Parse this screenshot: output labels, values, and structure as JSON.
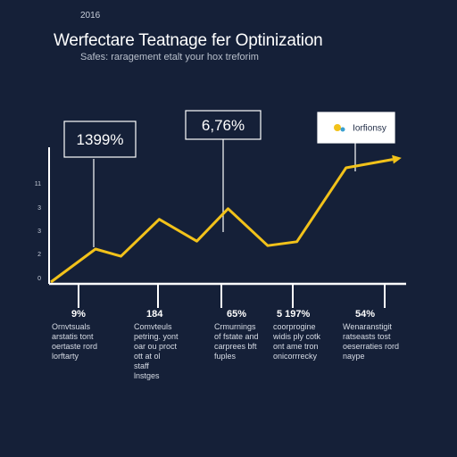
{
  "header": {
    "year": "2016",
    "title": "Werfectare Teatnage fer Optinization",
    "subtitle": "Safes: raragement etalt your hox treforim"
  },
  "callouts": [
    {
      "text": "1399%"
    },
    {
      "text": "6,76%"
    },
    {
      "text": "Iorfionsy",
      "logo": true
    }
  ],
  "bottom_labels": [
    {
      "value": "9%",
      "lines": [
        "Ornvtsuals",
        "arstatis tont",
        "oertaste rord",
        "lorftarty"
      ]
    },
    {
      "value": "184",
      "lines": [
        "Comvteuls",
        "petring.  yont",
        "oar ou proct",
        "ott at ol",
        "staff",
        "lnstges"
      ]
    },
    {
      "value": "65%",
      "lines": [
        "Crmurnings",
        "of  fstate and",
        "carprees bft",
        "fuples"
      ]
    },
    {
      "value": "5 197%",
      "lines": [
        "coorprogine",
        "widis ply cotk",
        "ont ame tron",
        "onicorrrecky"
      ]
    },
    {
      "value": "54%",
      "lines": [
        "Wenaranstigit",
        "ratseasts tost",
        "oeserraties rord",
        "naype"
      ]
    }
  ],
  "chart_data": {
    "type": "line",
    "title": "Werfectare Teatnage fer Optinization",
    "xlabel": "",
    "ylabel": "",
    "y_ticks": [
      "0",
      "2",
      "3",
      "3",
      "11"
    ],
    "ylim": [
      0,
      11
    ],
    "x_ticks": [
      "9%",
      "184",
      "65%",
      "5 197%",
      "54%"
    ],
    "series": [
      {
        "values": [
          0,
          2.95,
          2.3,
          5.6,
          3.65,
          6.55,
          3.25,
          3.6,
          10.2,
          10.95
        ],
        "x": [
          0,
          1.07,
          1.68,
          2.6,
          3.5,
          4.25,
          5.2,
          5.9,
          7.08,
          8.2
        ]
      }
    ],
    "colors": {
      "line": "#f2c21a",
      "axis": "#ffffff",
      "background": "#152038"
    },
    "grid": false
  }
}
